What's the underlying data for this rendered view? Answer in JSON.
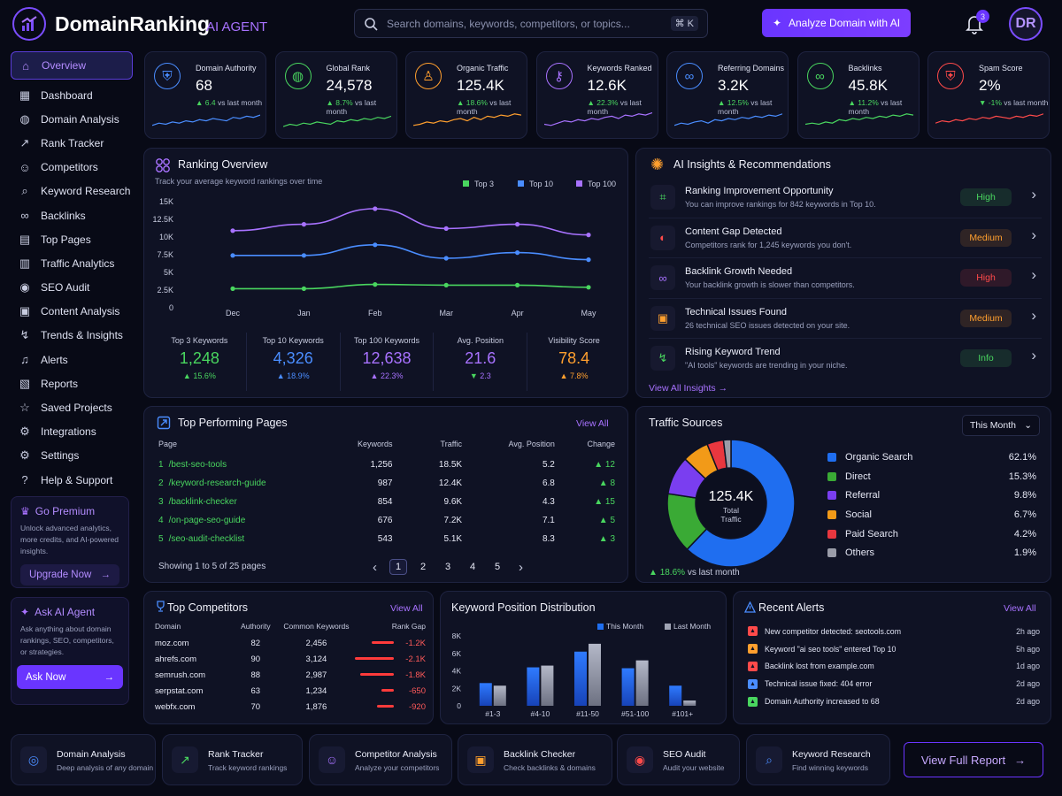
{
  "header": {
    "brand": "DomainRanking",
    "brand_sub": "AI AGENT",
    "search_placeholder": "Search domains, keywords, competitors, or topics...",
    "shortcut": "⌘ K",
    "analyze_label": "Analyze Domain with AI",
    "notification_count": "3",
    "avatar": "DR"
  },
  "sidebar": {
    "items": [
      {
        "label": "Overview",
        "icon": "home-icon"
      },
      {
        "label": "Dashboard",
        "icon": "grid-icon"
      },
      {
        "label": "Domain Analysis",
        "icon": "globe-icon"
      },
      {
        "label": "Rank Tracker",
        "icon": "chart-icon"
      },
      {
        "label": "Competitors",
        "icon": "users-icon"
      },
      {
        "label": "Keyword Research",
        "icon": "search-icon"
      },
      {
        "label": "Backlinks",
        "icon": "link-icon"
      },
      {
        "label": "Top Pages",
        "icon": "page-icon"
      },
      {
        "label": "Traffic Analytics",
        "icon": "bars-icon"
      },
      {
        "label": "SEO Audit",
        "icon": "audit-icon"
      },
      {
        "label": "Content Analysis",
        "icon": "content-icon"
      },
      {
        "label": "Trends & Insights",
        "icon": "trend-icon"
      },
      {
        "label": "Alerts",
        "icon": "bell-icon"
      },
      {
        "label": "Reports",
        "icon": "report-icon"
      },
      {
        "label": "Saved Projects",
        "icon": "star-icon"
      },
      {
        "label": "Integrations",
        "icon": "gear-icon"
      },
      {
        "label": "Settings",
        "icon": "settings-icon"
      },
      {
        "label": "Help & Support",
        "icon": "help-icon"
      }
    ],
    "premium": {
      "title": "Go Premium",
      "text": "Unlock advanced analytics, more credits, and AI-powered insights.",
      "button": "Upgrade Now"
    },
    "agent": {
      "title": "Ask AI Agent",
      "text": "Ask anything about domain rankings, SEO, competitors, or strategies.",
      "button": "Ask Now"
    }
  },
  "stats": [
    {
      "label": "Domain Authority",
      "value": "68",
      "change": "6.4",
      "suffix": "vs last month",
      "dir": "up",
      "color": "#4a8dff"
    },
    {
      "label": "Global Rank",
      "value": "24,578",
      "change": "8.7%",
      "suffix": "vs last month",
      "dir": "up",
      "color": "#49d65f"
    },
    {
      "label": "Organic Traffic",
      "value": "125.4K",
      "change": "18.6%",
      "suffix": "vs last month",
      "dir": "up",
      "color": "#ff9f2e"
    },
    {
      "label": "Keywords Ranked",
      "value": "12.6K",
      "change": "22.3%",
      "suffix": "vs last month",
      "dir": "up",
      "color": "#a872ff"
    },
    {
      "label": "Referring Domains",
      "value": "3.2K",
      "change": "12.5%",
      "suffix": "vs last month",
      "dir": "up",
      "color": "#4a8dff"
    },
    {
      "label": "Backlinks",
      "value": "45.8K",
      "change": "11.2%",
      "suffix": "vs last month",
      "dir": "up",
      "color": "#49d65f"
    },
    {
      "label": "Spam Score",
      "value": "2%",
      "change": "-1%",
      "suffix": "vs last month",
      "dir": "down",
      "color": "#ff4a4a"
    }
  ],
  "ranking": {
    "title": "Ranking Overview",
    "subtitle": "Track your average keyword rankings over time",
    "summary": [
      {
        "label": "Top 3 Keywords",
        "value": "1,248",
        "change": "15.6%",
        "dir": "up",
        "color": "#49d65f"
      },
      {
        "label": "Top 10 Keywords",
        "value": "4,326",
        "change": "18.9%",
        "dir": "up",
        "color": "#4a8dff"
      },
      {
        "label": "Top 100 Keywords",
        "value": "12,638",
        "change": "22.3%",
        "dir": "up",
        "color": "#a872ff"
      },
      {
        "label": "Avg. Position",
        "value": "21.6",
        "change": "2.3",
        "dir": "down",
        "color": "#a872ff"
      },
      {
        "label": "Visibility Score",
        "value": "78.4",
        "change": "7.8%",
        "dir": "up",
        "color": "#ff9f2e"
      }
    ]
  },
  "insights": {
    "title": "AI Insights & Recommendations",
    "view_all": "View All Insights",
    "items": [
      {
        "title": "Ranking Improvement Opportunity",
        "text": "You can improve rankings for 842 keywords in Top 10.",
        "badge": "High",
        "badge_color": "#49d65f",
        "icon_color": "#49d65f"
      },
      {
        "title": "Content Gap Detected",
        "text": "Competitors rank for 1,245 keywords you don't.",
        "badge": "Medium",
        "badge_color": "#ff9f2e",
        "icon_color": "#ff4a4a"
      },
      {
        "title": "Backlink Growth Needed",
        "text": "Your backlink growth is slower than competitors.",
        "badge": "High",
        "badge_color": "#ff4a4a",
        "icon_color": "#a872ff"
      },
      {
        "title": "Technical Issues Found",
        "text": "26 technical SEO issues detected on your site.",
        "badge": "Medium",
        "badge_color": "#ff9f2e",
        "icon_color": "#ff9f2e"
      },
      {
        "title": "Rising Keyword Trend",
        "text": "\"AI tools\" keywords are trending in your niche.",
        "badge": "Info",
        "badge_color": "#49d65f",
        "icon_color": "#49d65f"
      }
    ]
  },
  "pages": {
    "title": "Top Performing Pages",
    "view_all": "View All",
    "headers": [
      "Page",
      "Keywords",
      "Traffic",
      "Avg. Position",
      "Change"
    ],
    "rows": [
      [
        "1",
        "/best-seo-tools",
        "1,256",
        "18.5K",
        "5.2",
        "12"
      ],
      [
        "2",
        "/keyword-research-guide",
        "987",
        "12.4K",
        "6.8",
        "8"
      ],
      [
        "3",
        "/backlink-checker",
        "854",
        "9.6K",
        "4.3",
        "15"
      ],
      [
        "4",
        "/on-page-seo-guide",
        "676",
        "7.2K",
        "7.1",
        "5"
      ],
      [
        "5",
        "/seo-audit-checklist",
        "543",
        "5.1K",
        "8.3",
        "3"
      ]
    ],
    "footer": "Showing 1 to 5 of 25 pages",
    "pagination": [
      "1",
      "2",
      "3",
      "4",
      "5"
    ]
  },
  "traffic": {
    "title": "Traffic Sources",
    "period": "This Month",
    "total": "125.4K",
    "total_label": "Total\nTraffic",
    "change": "18.6%",
    "change_suffix": "vs last month",
    "sources": [
      {
        "name": "Organic Search",
        "pct": "62.1%",
        "value": 62.1,
        "color": "#1f6ef0"
      },
      {
        "name": "Direct",
        "pct": "15.3%",
        "value": 15.3,
        "color": "#3aaa35"
      },
      {
        "name": "Referral",
        "pct": "9.8%",
        "value": 9.8,
        "color": "#7a3ef0"
      },
      {
        "name": "Social",
        "pct": "6.7%",
        "value": 6.7,
        "color": "#f29a18"
      },
      {
        "name": "Paid Search",
        "pct": "4.2%",
        "value": 4.2,
        "color": "#e8373f"
      },
      {
        "name": "Others",
        "pct": "1.9%",
        "value": 1.9,
        "color": "#9a9ca8"
      }
    ]
  },
  "competitors": {
    "title": "Top Competitors",
    "view_all": "View All",
    "headers": [
      "Domain",
      "Authority",
      "Common Keywords",
      "Rank Gap"
    ],
    "rows": [
      {
        "domain": "moz.com",
        "authority": "82",
        "common": "2,456",
        "gap": "-1.2K",
        "gap_value": -1.2
      },
      {
        "domain": "ahrefs.com",
        "authority": "90",
        "common": "3,124",
        "gap": "-2.1K",
        "gap_value": -2.1
      },
      {
        "domain": "semrush.com",
        "authority": "88",
        "common": "2,987",
        "gap": "-1.8K",
        "gap_value": -1.8
      },
      {
        "domain": "serpstat.com",
        "authority": "63",
        "common": "1,234",
        "gap": "-650",
        "gap_value": -0.65
      },
      {
        "domain": "webfx.com",
        "authority": "70",
        "common": "1,876",
        "gap": "-920",
        "gap_value": -0.92
      }
    ]
  },
  "distribution": {
    "title": "Keyword Position Distribution"
  },
  "alerts": {
    "title": "Recent Alerts",
    "view_all": "View All",
    "items": [
      {
        "text": "New competitor detected: seotools.com",
        "time": "2h ago",
        "color": "#ff4a4a"
      },
      {
        "text": "Keyword \"ai seo tools\" entered Top 10",
        "time": "5h ago",
        "color": "#ff9f2e"
      },
      {
        "text": "Backlink lost from example.com",
        "time": "1d ago",
        "color": "#ff4a4a"
      },
      {
        "text": "Technical issue fixed: 404 error",
        "time": "2d ago",
        "color": "#4a8dff"
      },
      {
        "text": "Domain Authority increased to 68",
        "time": "2d ago",
        "color": "#49d65f"
      }
    ]
  },
  "tools": [
    {
      "title": "Domain Analysis",
      "text": "Deep analysis of any domain",
      "color": "#4a8dff"
    },
    {
      "title": "Rank Tracker",
      "text": "Track keyword rankings",
      "color": "#49d65f"
    },
    {
      "title": "Competitor Analysis",
      "text": "Analyze your competitors",
      "color": "#a872ff"
    },
    {
      "title": "Backlink Checker",
      "text": "Check backlinks & domains",
      "color": "#ff9f2e"
    },
    {
      "title": "SEO Audit",
      "text": "Audit your website",
      "color": "#ff4a4a"
    },
    {
      "title": "Keyword Research",
      "text": "Find winning keywords",
      "color": "#4a8dff"
    }
  ],
  "view_report": "View Full Report",
  "chart_data": [
    {
      "type": "line",
      "title": "Ranking Overview",
      "x": [
        "Dec",
        "Jan",
        "Feb",
        "Mar",
        "Apr",
        "May"
      ],
      "ylim": [
        0,
        15000
      ],
      "yticks": [
        "0",
        "2.5K",
        "5K",
        "7.5K",
        "10K",
        "12.5K",
        "15K"
      ],
      "legend": "top-right",
      "series": [
        {
          "name": "Top 3",
          "color": "#49d65f",
          "values": [
            2700,
            2700,
            3300,
            3200,
            3200,
            2900
          ]
        },
        {
          "name": "Top 10",
          "color": "#4a8dff",
          "values": [
            7400,
            7400,
            8900,
            7000,
            7800,
            6800
          ]
        },
        {
          "name": "Top 100",
          "color": "#a872ff",
          "values": [
            10900,
            11800,
            14000,
            11200,
            11800,
            10300
          ]
        }
      ]
    },
    {
      "type": "pie",
      "title": "Traffic Sources",
      "categories": [
        "Organic Search",
        "Direct",
        "Referral",
        "Social",
        "Paid Search",
        "Others"
      ],
      "values": [
        62.1,
        15.3,
        9.8,
        6.7,
        4.2,
        1.9
      ]
    },
    {
      "type": "bar",
      "title": "Keyword Position Distribution",
      "categories": [
        "#1-3",
        "#4-10",
        "#11-50",
        "#51-100",
        "#101+"
      ],
      "ylim": [
        0,
        8000
      ],
      "yticks": [
        "0",
        "2K",
        "4K",
        "6K",
        "8K"
      ],
      "legend": "top-right",
      "series": [
        {
          "name": "This Month",
          "color": "#1f6ef0",
          "values": [
            2600,
            4400,
            6200,
            4300,
            2300
          ]
        },
        {
          "name": "Last Month",
          "color": "#a0a4b4",
          "values": [
            2300,
            4600,
            7100,
            5200,
            600
          ]
        }
      ]
    }
  ]
}
